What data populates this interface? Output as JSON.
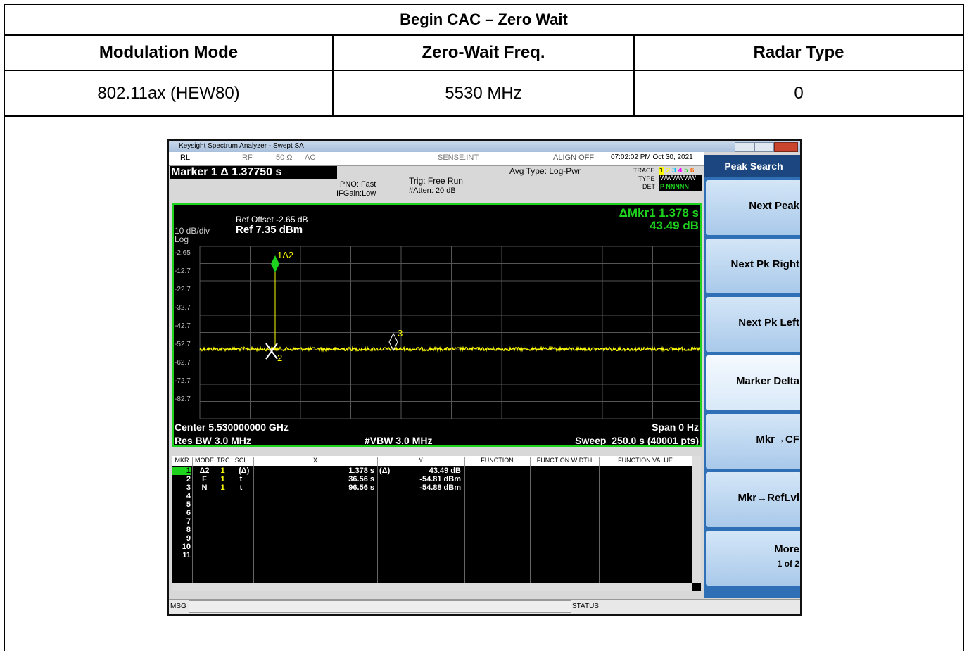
{
  "table": {
    "title": "Begin CAC – Zero Wait",
    "headers": [
      "Modulation Mode",
      "Zero-Wait Freq.",
      "Radar Type"
    ],
    "rows": [
      [
        "802.11ax (HEW80)",
        "5530 MHz",
        "0"
      ]
    ]
  },
  "analyzer": {
    "window_title": "Keysight Spectrum Analyzer - Swept SA",
    "status": {
      "rl": "RL",
      "rf": "RF",
      "impedance": "50 Ω",
      "coupling": "AC",
      "sense": "SENSE:INT",
      "align": "ALIGN OFF",
      "datetime": "07:02:02 PM Oct 30, 2021"
    },
    "marker_readout": "Marker 1 Δ 1.37750 s",
    "pno": "PNO: Fast",
    "ifgain": "IFGain:Low",
    "trig": "Trig: Free Run",
    "atten": "#Atten: 20 dB",
    "avg": "Avg Type: Log-Pwr",
    "trace_label": "TRACE",
    "trace_nums": [
      "1",
      "2",
      "3",
      "4",
      "5",
      "6"
    ],
    "type_label": "TYPE",
    "type_value": "WWWWWW",
    "det_label": "DET",
    "det_value": "P NNNNN",
    "ref_offset": "Ref Offset -2.65 dB",
    "ref_level": "Ref 7.35 dBm",
    "scale": "10 dB/div",
    "scale_type": "Log",
    "delta_marker": "ΔMkr1 1.378 s",
    "delta_value": "43.49 dB",
    "y_labels": [
      "-2.65",
      "-12.7",
      "-22.7",
      "-32.7",
      "-42.7",
      "-52.7",
      "-62.7",
      "-72.7",
      "-82.7"
    ],
    "marker_labels": [
      "1Δ2",
      "2",
      "3"
    ],
    "center": "Center 5.530000000 GHz",
    "res_bw": "Res BW 3.0 MHz",
    "vbw": "#VBW 3.0 MHz",
    "span": "Span 0 Hz",
    "sweep": "Sweep  250.0 s (40001 pts)",
    "marker_table": {
      "columns": [
        "MKR",
        "MODE",
        "TRC",
        "SCL",
        "X",
        "Y",
        "FUNCTION",
        "FUNCTION WIDTH",
        "FUNCTION VALUE"
      ],
      "rows": [
        {
          "mkr": "1",
          "mode": "Δ2",
          "trc": "1",
          "scl": "t",
          "x_ref": "(Δ)",
          "x": "1.378 s",
          "y_ref": "(Δ)",
          "y": "43.49 dB"
        },
        {
          "mkr": "2",
          "mode": "F",
          "trc": "1",
          "scl": "t",
          "x": "36.56 s",
          "y": "-54.81 dBm"
        },
        {
          "mkr": "3",
          "mode": "N",
          "trc": "1",
          "scl": "t",
          "x": "96.56 s",
          "y": "-54.88 dBm"
        },
        {
          "mkr": "4"
        },
        {
          "mkr": "5"
        },
        {
          "mkr": "6"
        },
        {
          "mkr": "7"
        },
        {
          "mkr": "8"
        },
        {
          "mkr": "9"
        },
        {
          "mkr": "10"
        },
        {
          "mkr": "11"
        }
      ]
    },
    "msg": "MSG",
    "status_label": "STATUS",
    "softkeys": {
      "title": "Peak Search",
      "keys": [
        "Next Peak",
        "Next Pk Right",
        "Next Pk Left",
        "Marker Delta",
        "Mkr→CF",
        "Mkr→RefLvl",
        "More"
      ],
      "more_page": "1 of 2"
    }
  }
}
